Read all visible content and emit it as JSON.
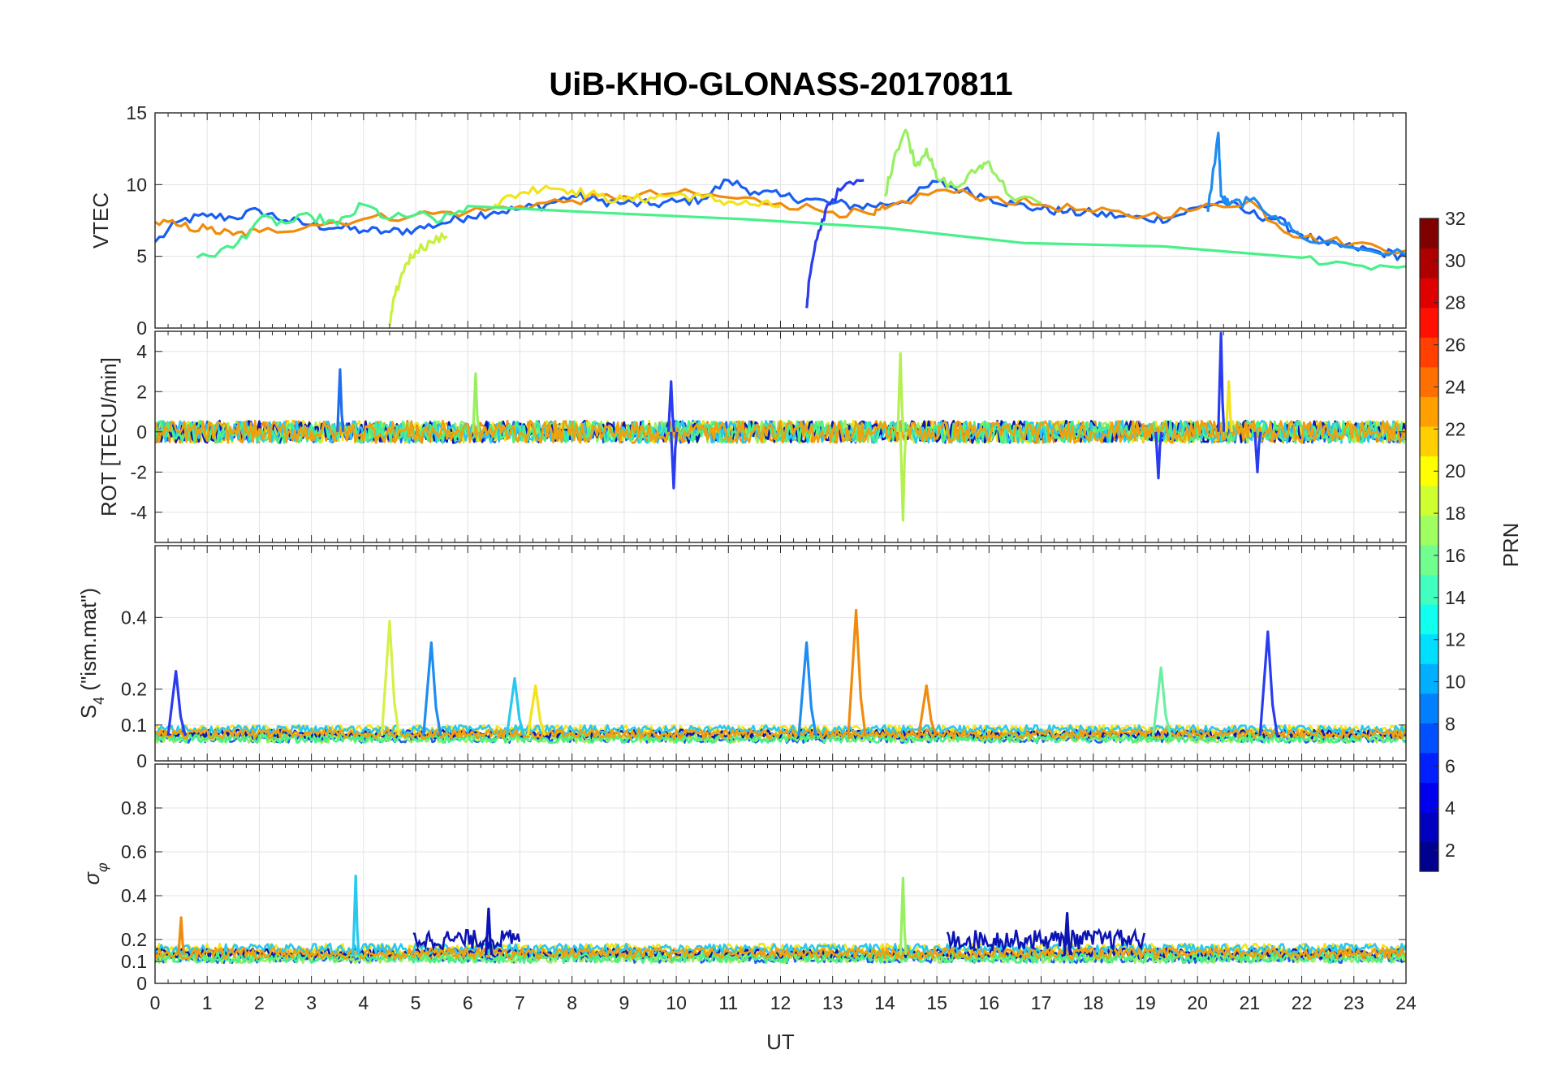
{
  "title": "UiB-KHO-GLONASS-20170811",
  "xlabel": "UT",
  "colorbar": {
    "label": "PRN",
    "ticks": [
      "2",
      "4",
      "6",
      "8",
      "10",
      "12",
      "14",
      "16",
      "18",
      "20",
      "22",
      "24",
      "26",
      "28",
      "30",
      "32"
    ]
  },
  "panels": [
    {
      "key": "vtec",
      "ylabel": "VTEC"
    },
    {
      "key": "rot",
      "ylabel": "ROT [TECU/min]"
    },
    {
      "key": "s4",
      "ylabel_main": "S",
      "ylabel_sub": "4",
      "ylabel_tail": " (\"ism.mat\")"
    },
    {
      "key": "sigma",
      "ylabel_main": "σ",
      "ylabel_sub": "φ"
    }
  ],
  "chart_data": [
    {
      "type": "line",
      "title": "UiB-KHO-GLONASS-20170811",
      "ylabel": "VTEC",
      "xlim": [
        0,
        24
      ],
      "ylim": [
        0,
        15
      ],
      "yticks": [
        0,
        5,
        10,
        15
      ],
      "grid": true,
      "series": [
        {
          "color": "#1a5ff0",
          "x": [
            0,
            0.5,
            1,
            1.5,
            2,
            2.5,
            3,
            3.5,
            4,
            4.5,
            5,
            5.5,
            6,
            6.5,
            7,
            7.5,
            8,
            8.5,
            9,
            9.5,
            10,
            10.5,
            11,
            11.5,
            12,
            12.5,
            13,
            13.5,
            14,
            14.5,
            15,
            15.5,
            16,
            16.5,
            17,
            17.5,
            18,
            18.5,
            19,
            19.5,
            20,
            20.5,
            21,
            21.5,
            22,
            22.5,
            23,
            23.5,
            24
          ],
          "y": [
            6,
            7.5,
            7.8,
            7.7,
            8.2,
            7.5,
            7.2,
            7,
            6.8,
            6.7,
            6.9,
            7.3,
            7.8,
            8.1,
            8.3,
            8.6,
            9.2,
            8.9,
            8.7,
            8.6,
            8.8,
            9,
            10.3,
            9.5,
            9.2,
            9,
            8.7,
            8.5,
            8.6,
            9.1,
            10.2,
            9.6,
            9.1,
            8.6,
            8.3,
            8.1,
            8,
            7.8,
            7.6,
            7.7,
            8.4,
            8.8,
            8,
            7.6,
            6.5,
            5.8,
            5.6,
            5.3,
            5
          ]
        },
        {
          "color": "#f08c0c",
          "x": [
            0,
            0.5,
            1,
            1.5,
            2,
            3,
            4,
            5,
            6,
            7,
            8,
            9,
            10,
            11,
            12,
            13,
            13.8,
            14,
            15,
            16,
            17,
            18,
            19,
            20,
            21,
            21.5,
            22,
            23,
            24
          ],
          "y": [
            7.4,
            7.1,
            6.9,
            6.5,
            6.7,
            7.2,
            7.6,
            7.9,
            8.1,
            8.5,
            8.9,
            9.2,
            9.4,
            9.1,
            8.7,
            8.1,
            7.9,
            8.3,
            9.6,
            9.1,
            8.6,
            8.1,
            7.8,
            8.3,
            8.9,
            7.3,
            6.3,
            5.9,
            5.4
          ]
        },
        {
          "color": "#f2e31a",
          "x": [
            6.5,
            7,
            7.5,
            8,
            8.5,
            9,
            9.5,
            10,
            10.5,
            11,
            11.5,
            12
          ],
          "y": [
            8.6,
            9.4,
            9.9,
            9.6,
            9.2,
            8.9,
            9.1,
            9.3,
            9.1,
            8.8,
            8.6,
            8.5
          ]
        },
        {
          "color": "#c8f03c",
          "x": [
            4.5,
            4.6,
            4.8,
            5,
            5.3,
            5.6
          ],
          "y": [
            0.2,
            2.2,
            4.4,
            5.4,
            6,
            6.4
          ]
        },
        {
          "color": "#2a3cf0",
          "x": [
            12.5,
            12.55,
            12.7,
            12.9,
            13.2,
            13.6
          ],
          "y": [
            1.4,
            3.4,
            6.2,
            8.6,
            9.8,
            10.3
          ]
        },
        {
          "color": "#98f060",
          "x": [
            14,
            14.2,
            14.4,
            14.6,
            14.8,
            15,
            15.4,
            15.8,
            16,
            16.4,
            17
          ],
          "y": [
            9.2,
            12.2,
            13.8,
            11.3,
            12.5,
            10.4,
            9.8,
            11.2,
            11.6,
            9.2,
            8.7
          ]
        },
        {
          "color": "#1e8cf0",
          "x": [
            20.2,
            20.4,
            20.45,
            20.6,
            21,
            21.5,
            22,
            23,
            24
          ],
          "y": [
            8.1,
            13.6,
            9.2,
            8.6,
            8.9,
            7.8,
            6.3,
            5.6,
            5.1
          ]
        },
        {
          "color": "#48f08a",
          "x": [
            0.8,
            1.5,
            2,
            2.5,
            3,
            3.5,
            4,
            4.5,
            5,
            5.5,
            6,
            22,
            23,
            24
          ],
          "y": [
            4.9,
            5.6,
            7.6,
            7.3,
            7.8,
            7.2,
            8.6,
            7.6,
            7.9,
            7.5,
            8.5,
            4.9,
            4.4,
            4.3
          ]
        }
      ]
    },
    {
      "type": "line",
      "ylabel": "ROT [TECU/min]",
      "xlim": [
        0,
        24
      ],
      "ylim": [
        -5.5,
        5
      ],
      "yticks": [
        -4,
        -2,
        0,
        2,
        4
      ],
      "grid": true,
      "spikes": [
        {
          "color": "#1e6ef0",
          "x": 3.55,
          "y": 3.1
        },
        {
          "color": "#98f060",
          "x": 6.15,
          "y": 2.9
        },
        {
          "color": "#2a3cf0",
          "x": 9.9,
          "y": 2.5
        },
        {
          "color": "#2a3cf0",
          "x": 9.95,
          "y": -2.8
        },
        {
          "color": "#b4f050",
          "x": 14.3,
          "y": 3.9
        },
        {
          "color": "#b4f050",
          "x": 14.35,
          "y": -4.4
        },
        {
          "color": "#2a3cf0",
          "x": 20.45,
          "y": 4.9
        },
        {
          "color": "#f2e31a",
          "x": 20.6,
          "y": 2.5
        },
        {
          "color": "#2a3cf0",
          "x": 19.25,
          "y": -2.3
        },
        {
          "color": "#2a3cf0",
          "x": 21.15,
          "y": -2
        }
      ]
    },
    {
      "type": "line",
      "ylabel": "S4 (\"ism.mat\")",
      "xlim": [
        0,
        24
      ],
      "ylim": [
        0,
        0.6
      ],
      "yticks": [
        0,
        0.1,
        0.2,
        0.4
      ],
      "grid": true,
      "peaks": [
        {
          "color": "#2a3cf0",
          "x": 0.4,
          "y": 0.25
        },
        {
          "color": "#d6f048",
          "x": 4.5,
          "y": 0.39
        },
        {
          "color": "#1e8cf0",
          "x": 5.3,
          "y": 0.33
        },
        {
          "color": "#28c8f0",
          "x": 6.9,
          "y": 0.23
        },
        {
          "color": "#f2e31a",
          "x": 7.3,
          "y": 0.21
        },
        {
          "color": "#1e8cf0",
          "x": 12.5,
          "y": 0.33
        },
        {
          "color": "#f08c0c",
          "x": 13.45,
          "y": 0.42
        },
        {
          "color": "#f08c0c",
          "x": 14.8,
          "y": 0.21
        },
        {
          "color": "#6af0a0",
          "x": 19.3,
          "y": 0.26
        },
        {
          "color": "#2a3cf0",
          "x": 21.35,
          "y": 0.36
        }
      ]
    },
    {
      "type": "line",
      "ylabel": "σφ",
      "xlim": [
        0,
        24
      ],
      "ylim": [
        0,
        1
      ],
      "yticks": [
        0,
        0.1,
        0.2,
        0.4,
        0.6,
        0.8
      ],
      "xticks": [
        0,
        1,
        2,
        3,
        4,
        5,
        6,
        7,
        8,
        9,
        10,
        11,
        12,
        13,
        14,
        15,
        16,
        17,
        18,
        19,
        20,
        21,
        22,
        23,
        24
      ],
      "xlabel": "UT",
      "grid": true,
      "peaks": [
        {
          "color": "#28c8f0",
          "x": 3.85,
          "y": 0.49
        },
        {
          "color": "#98f060",
          "x": 14.35,
          "y": 0.48
        },
        {
          "color": "#f08c0c",
          "x": 0.5,
          "y": 0.3
        },
        {
          "color": "#0c14b4",
          "x": 6.4,
          "y": 0.34
        },
        {
          "color": "#0c14b4",
          "x": 17.5,
          "y": 0.32
        }
      ]
    }
  ]
}
